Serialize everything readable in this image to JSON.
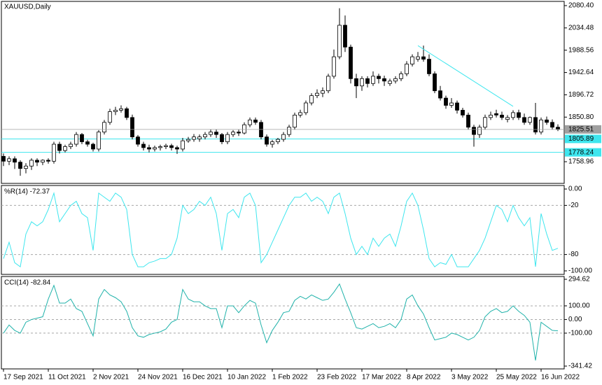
{
  "chart_data": [
    {
      "type": "candlestick",
      "title": "XAUUSD,Daily",
      "categories": [
        "17 Sep 2021",
        null,
        null,
        null,
        null,
        null,
        null,
        null,
        "11 Oct 2021",
        null,
        null,
        null,
        null,
        null,
        null,
        null,
        "2 Nov 2021",
        null,
        null,
        null,
        null,
        null,
        null,
        null,
        "24 Nov 2021",
        null,
        null,
        null,
        null,
        null,
        null,
        null,
        "16 Dec 2021",
        null,
        null,
        null,
        null,
        null,
        null,
        null,
        "10 Jan 2022",
        null,
        null,
        null,
        null,
        null,
        null,
        null,
        "1 Feb 2022",
        null,
        null,
        null,
        null,
        null,
        null,
        null,
        "23 Feb 2022",
        null,
        null,
        null,
        null,
        null,
        null,
        null,
        "17 Mar 2022",
        null,
        null,
        null,
        null,
        null,
        null,
        null,
        "8 Apr 2022",
        null,
        null,
        null,
        null,
        null,
        null,
        null,
        "3 May 2022",
        null,
        null,
        null,
        null,
        null,
        null,
        null,
        "25 May 2022",
        null,
        null,
        null,
        null,
        null,
        null,
        null,
        "16 Jun 2022",
        null,
        null,
        null
      ],
      "open": [
        1770,
        1760,
        1765,
        1758,
        1745,
        1750,
        1762,
        1758,
        1762,
        1760,
        1795,
        1782,
        1790,
        1795,
        1815,
        1800,
        1795,
        1785,
        1820,
        1840,
        1862,
        1865,
        1868,
        1850,
        1810,
        1795,
        1788,
        1785,
        1788,
        1790,
        1792,
        1788,
        1785,
        1802,
        1805,
        1806,
        1810,
        1815,
        1820,
        1815,
        1800,
        1815,
        1820,
        1818,
        1835,
        1845,
        1840,
        1810,
        1795,
        1800,
        1805,
        1815,
        1830,
        1855,
        1860,
        1880,
        1895,
        1900,
        1905,
        1935,
        1975,
        2040,
        1995,
        1930,
        1915,
        1930,
        1920,
        1935,
        1930,
        1920,
        1925,
        1930,
        1940,
        1960,
        1970,
        1975,
        1970,
        1940,
        1905,
        1890,
        1875,
        1880,
        1865,
        1855,
        1830,
        1815,
        1830,
        1850,
        1858,
        1855,
        1846,
        1850,
        1860,
        1850,
        1840,
        1850,
        1820,
        1845,
        1840,
        1830
      ],
      "high": [
        1776,
        1770,
        1770,
        1762,
        1756,
        1766,
        1766,
        1764,
        1766,
        1800,
        1800,
        1794,
        1800,
        1820,
        1818,
        1804,
        1798,
        1824,
        1845,
        1868,
        1872,
        1875,
        1872,
        1856,
        1814,
        1800,
        1794,
        1792,
        1794,
        1796,
        1796,
        1792,
        1808,
        1810,
        1816,
        1815,
        1820,
        1826,
        1826,
        1818,
        1820,
        1824,
        1825,
        1840,
        1850,
        1850,
        1845,
        1815,
        1804,
        1808,
        1820,
        1835,
        1860,
        1866,
        1885,
        1900,
        1908,
        1912,
        1940,
        1990,
        2075,
        2060,
        2000,
        1940,
        1935,
        1935,
        1945,
        1940,
        1936,
        1930,
        1935,
        1945,
        1966,
        1980,
        1985,
        1998,
        1980,
        1945,
        1915,
        1895,
        1890,
        1885,
        1870,
        1860,
        1835,
        1835,
        1856,
        1862,
        1866,
        1862,
        1855,
        1865,
        1866,
        1858,
        1852,
        1880,
        1850,
        1852,
        1846,
        1836
      ],
      "low": [
        1750,
        1752,
        1744,
        1730,
        1735,
        1742,
        1750,
        1752,
        1755,
        1755,
        1776,
        1778,
        1785,
        1790,
        1795,
        1790,
        1780,
        1780,
        1815,
        1835,
        1855,
        1860,
        1845,
        1805,
        1790,
        1782,
        1778,
        1780,
        1782,
        1785,
        1782,
        1775,
        1780,
        1798,
        1800,
        1800,
        1805,
        1810,
        1808,
        1795,
        1795,
        1810,
        1812,
        1815,
        1830,
        1835,
        1805,
        1790,
        1788,
        1795,
        1800,
        1810,
        1825,
        1850,
        1855,
        1875,
        1890,
        1892,
        1900,
        1930,
        1970,
        1985,
        1920,
        1890,
        1905,
        1912,
        1915,
        1920,
        1915,
        1915,
        1920,
        1925,
        1935,
        1955,
        1965,
        1965,
        1935,
        1900,
        1885,
        1868,
        1870,
        1858,
        1850,
        1825,
        1790,
        1808,
        1825,
        1845,
        1850,
        1845,
        1840,
        1845,
        1845,
        1835,
        1835,
        1815,
        1815,
        1835,
        1825,
        1822
      ],
      "close": [
        1760,
        1765,
        1758,
        1745,
        1750,
        1762,
        1758,
        1762,
        1760,
        1795,
        1782,
        1790,
        1795,
        1815,
        1800,
        1795,
        1785,
        1820,
        1840,
        1862,
        1865,
        1868,
        1850,
        1810,
        1795,
        1788,
        1785,
        1788,
        1790,
        1792,
        1788,
        1785,
        1802,
        1805,
        1810,
        1810,
        1815,
        1820,
        1815,
        1800,
        1815,
        1820,
        1818,
        1835,
        1845,
        1840,
        1810,
        1795,
        1800,
        1805,
        1815,
        1830,
        1855,
        1860,
        1880,
        1895,
        1900,
        1905,
        1935,
        1975,
        2040,
        1995,
        1930,
        1915,
        1930,
        1920,
        1935,
        1930,
        1925,
        1925,
        1930,
        1940,
        1960,
        1975,
        1975,
        1970,
        1940,
        1905,
        1890,
        1875,
        1880,
        1865,
        1855,
        1830,
        1815,
        1830,
        1850,
        1855,
        1855,
        1850,
        1850,
        1860,
        1850,
        1840,
        1850,
        1820,
        1845,
        1840,
        1830,
        1825.51
      ],
      "ylim": [
        1714.3,
        2089.05
      ],
      "yticks": [
        {
          "value": 2080.4,
          "label": "2080.40"
        },
        2034.48,
        1988.56,
        1942.64,
        1896.72,
        {
          "value": 1850.8,
          "label": "1850.80"
        },
        1758.96
      ],
      "last_price": 1825.51,
      "last_price_color": "#a0a0a0",
      "levels": [
        1805.89,
        1778.24
      ],
      "level_color": "#3ee6ee",
      "trendline": {
        "x": [
          74,
          91
        ],
        "y": [
          1998,
          1873
        ],
        "color": "#3ee6ee"
      },
      "bull_color": "#ffffff",
      "bear_color": "#000000"
    },
    {
      "type": "line",
      "title": "%R(14) -72.37",
      "color": "#3ee6ee",
      "values": [
        -85,
        -65,
        -90,
        -95,
        -55,
        -40,
        -45,
        -40,
        -25,
        -5,
        -40,
        -30,
        -20,
        -15,
        -30,
        -35,
        -75,
        -5,
        -10,
        -15,
        -5,
        -10,
        -25,
        -80,
        -95,
        -95,
        -90,
        -88,
        -85,
        -85,
        -80,
        -60,
        -20,
        -30,
        -25,
        -15,
        -20,
        -10,
        -30,
        -75,
        -30,
        -25,
        -35,
        -10,
        -5,
        -20,
        -90,
        -80,
        -65,
        -50,
        -35,
        -20,
        -10,
        -10,
        -5,
        -15,
        -10,
        -15,
        -30,
        -10,
        -5,
        -30,
        -60,
        -80,
        -70,
        -80,
        -60,
        -70,
        -60,
        -55,
        -70,
        -45,
        -15,
        -5,
        -20,
        -50,
        -85,
        -95,
        -90,
        -92,
        -80,
        -95,
        -95,
        -95,
        -85,
        -75,
        -60,
        -40,
        -20,
        -25,
        -40,
        -20,
        -35,
        -45,
        -35,
        -95,
        -30,
        -55,
        -75,
        -72.37
      ],
      "ylim": [
        -104.3,
        4.3
      ],
      "yticks": [
        {
          "value": 0,
          "label": "0.00"
        },
        -20,
        -80,
        {
          "value": -100,
          "label": "-100.00"
        }
      ],
      "levels": [
        -20,
        -80
      ]
    },
    {
      "type": "line",
      "title": "CCI(14) -82.84",
      "color": "#20b2aa",
      "values": [
        -100,
        -40,
        -80,
        -100,
        -20,
        0,
        10,
        20,
        150,
        250,
        120,
        120,
        150,
        80,
        60,
        -30,
        -120,
        150,
        220,
        180,
        160,
        130,
        60,
        -60,
        -120,
        -130,
        -110,
        -100,
        -90,
        -70,
        -20,
        0,
        220,
        150,
        130,
        130,
        100,
        80,
        80,
        -60,
        100,
        100,
        50,
        100,
        140,
        120,
        -40,
        -170,
        -80,
        -20,
        50,
        60,
        140,
        170,
        150,
        180,
        160,
        140,
        150,
        200,
        260,
        150,
        50,
        -60,
        -70,
        -50,
        -30,
        -60,
        -50,
        -30,
        -60,
        0,
        150,
        180,
        100,
        40,
        -60,
        -150,
        -140,
        -130,
        -100,
        -110,
        -130,
        -150,
        -130,
        -80,
        20,
        60,
        80,
        50,
        60,
        100,
        60,
        30,
        -20,
        -300,
        -20,
        -50,
        -80,
        -82.84
      ],
      "ylim": [
        -361.9,
        315.1
      ],
      "yticks": [
        294.62,
        {
          "value": 100,
          "label": "100.00"
        },
        {
          "value": 0,
          "label": "0.00"
        },
        {
          "value": -100,
          "label": "-100.00"
        },
        -341.42
      ],
      "levels": [
        100,
        0,
        -100
      ]
    }
  ]
}
